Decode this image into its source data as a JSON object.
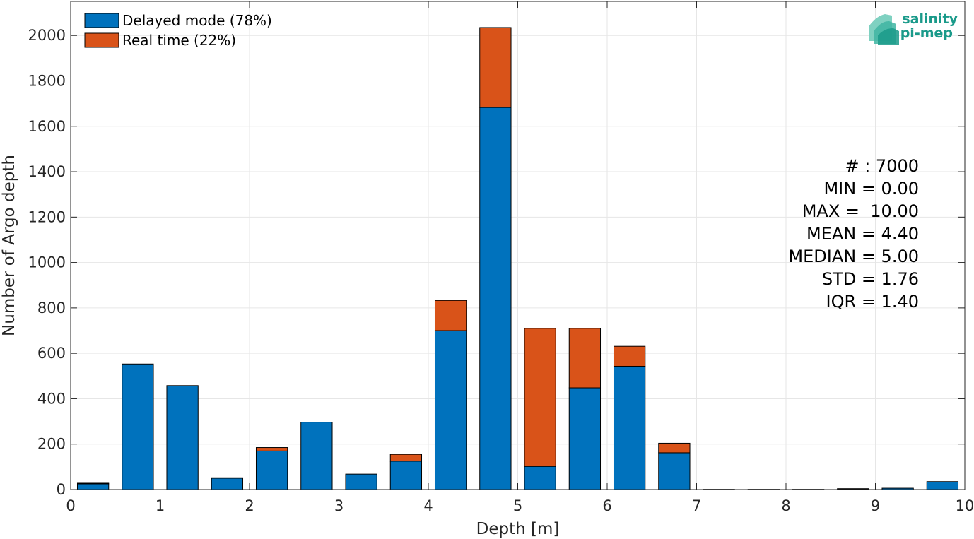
{
  "chart_data": {
    "type": "bar",
    "stacked": true,
    "xlabel": "Depth [m]",
    "ylabel": "Number of Argo depth",
    "xlim": [
      0,
      10
    ],
    "ylim": [
      0,
      2150
    ],
    "xticks": [
      0,
      1,
      2,
      3,
      4,
      5,
      6,
      7,
      8,
      9,
      10
    ],
    "yticks": [
      0,
      200,
      400,
      600,
      800,
      1000,
      1200,
      1400,
      1600,
      1800,
      2000
    ],
    "grid": true,
    "legend_position": "top-left",
    "bin_width": 0.5,
    "bar_fraction": 0.7,
    "x": [
      0.25,
      0.75,
      1.25,
      1.75,
      2.25,
      2.75,
      3.25,
      3.75,
      4.25,
      4.75,
      5.25,
      5.75,
      6.25,
      6.75,
      7.25,
      7.75,
      8.25,
      8.75,
      9.25,
      9.75
    ],
    "series": [
      {
        "name": "Delayed mode (78%)",
        "color": "#0072bd",
        "values": [
          25,
          553,
          458,
          50,
          170,
          297,
          68,
          125,
          700,
          1683,
          102,
          448,
          543,
          162,
          1,
          1,
          1,
          3,
          6,
          35
        ]
      },
      {
        "name": "Real time (22%)",
        "color": "#d95319",
        "values": [
          3,
          0,
          0,
          2,
          15,
          0,
          0,
          30,
          133,
          352,
          608,
          262,
          88,
          42,
          0,
          0,
          0,
          1,
          0,
          0
        ]
      }
    ]
  },
  "stats": [
    "# : 7000",
    "MIN = 0.00",
    "MAX =  10.00",
    "MEAN = 4.40",
    "MEDIAN = 5.00",
    "STD = 1.76",
    "IQR = 1.40"
  ],
  "logo": {
    "line1": "salinity",
    "line2": "pi-mep",
    "color": "#1a9a8a"
  }
}
